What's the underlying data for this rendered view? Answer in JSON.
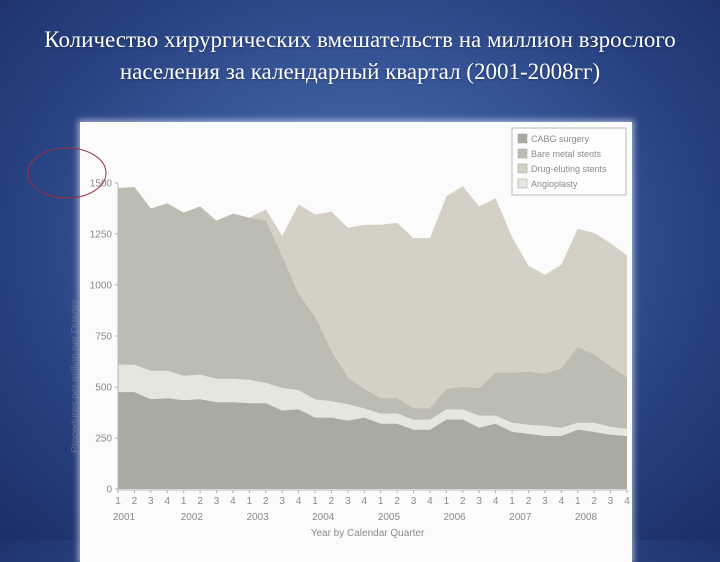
{
  "slide": {
    "title_line1": "Количество  хирургических  вмешательств на миллион взрослого",
    "title_line2": "населения за календарный квартал (2001-2008гг)"
  },
  "colors": {
    "background": "#2e4b8e",
    "cabg": "#aaa9a2",
    "angioplasty": "#e5e6de",
    "bare_metal": "#bdbcb2",
    "drug_eluting": "#d4d0c5",
    "annotation_circle": "#9a3040"
  },
  "chart_data": {
    "type": "area",
    "stacked": true,
    "title": "",
    "xlabel": "Year by Calendar Quarter",
    "ylabel": "Procedures per million per quarter",
    "ylim": [
      0,
      1500
    ],
    "yticks": [
      0,
      250,
      500,
      750,
      1000,
      1250,
      1500
    ],
    "grid": false,
    "legend_position": "top-right",
    "x_quarter_labels": [
      "1",
      "2",
      "3",
      "4",
      "1",
      "2",
      "3",
      "4",
      "1",
      "2",
      "3",
      "4",
      "1",
      "2",
      "3",
      "4",
      "1",
      "2",
      "3",
      "4",
      "1",
      "2",
      "3",
      "4",
      "1",
      "2",
      "3",
      "4",
      "1",
      "2",
      "3",
      "4"
    ],
    "x_year_labels": [
      "2001",
      "2002",
      "2003",
      "2004",
      "2005",
      "2006",
      "2007",
      "2008"
    ],
    "categories": [
      "2001Q1",
      "2001Q2",
      "2001Q3",
      "2001Q4",
      "2002Q1",
      "2002Q2",
      "2002Q3",
      "2002Q4",
      "2003Q1",
      "2003Q2",
      "2003Q3",
      "2003Q4",
      "2004Q1",
      "2004Q2",
      "2004Q3",
      "2004Q4",
      "2005Q1",
      "2005Q2",
      "2005Q3",
      "2005Q4",
      "2006Q1",
      "2006Q2",
      "2006Q3",
      "2006Q4",
      "2007Q1",
      "2007Q2",
      "2007Q3",
      "2007Q4",
      "2008Q1",
      "2008Q2",
      "2008Q3",
      "2008Q4"
    ],
    "series": [
      {
        "name": "CABG surgery",
        "values": [
          475,
          475,
          440,
          445,
          435,
          440,
          425,
          425,
          420,
          420,
          385,
          390,
          350,
          350,
          335,
          350,
          320,
          320,
          290,
          290,
          340,
          340,
          300,
          320,
          280,
          270,
          260,
          260,
          290,
          280,
          265,
          260
        ]
      },
      {
        "name": "Angioplasty",
        "values": [
          135,
          135,
          140,
          135,
          120,
          120,
          115,
          115,
          115,
          100,
          110,
          95,
          90,
          80,
          80,
          45,
          50,
          50,
          50,
          50,
          50,
          50,
          60,
          40,
          45,
          45,
          50,
          40,
          35,
          45,
          40,
          35
        ]
      },
      {
        "name": "Bare metal stents",
        "values": [
          865,
          870,
          795,
          820,
          800,
          825,
          775,
          810,
          795,
          795,
          645,
          470,
          405,
          245,
          130,
          95,
          75,
          75,
          55,
          55,
          100,
          110,
          135,
          210,
          245,
          260,
          255,
          290,
          370,
          335,
          295,
          250
        ]
      },
      {
        "name": "Drug-eluting stents",
        "values": [
          0,
          0,
          0,
          0,
          0,
          0,
          0,
          0,
          0,
          55,
          100,
          440,
          500,
          685,
          735,
          805,
          850,
          860,
          835,
          835,
          945,
          985,
          890,
          855,
          665,
          520,
          485,
          510,
          580,
          595,
          605,
          600
        ]
      }
    ],
    "annotation": "red ellipse around the 1500 tick"
  },
  "legend": {
    "items": [
      {
        "label": "CABG surgery"
      },
      {
        "label": "Bare metal stents"
      },
      {
        "label": "Drug-eluting stents"
      },
      {
        "label": "Angioplasty"
      }
    ]
  },
  "axis": {
    "xlabel_visible": "Year by Calendar Quarter",
    "ylabel_visible": "Procedures per million per Quarter"
  }
}
